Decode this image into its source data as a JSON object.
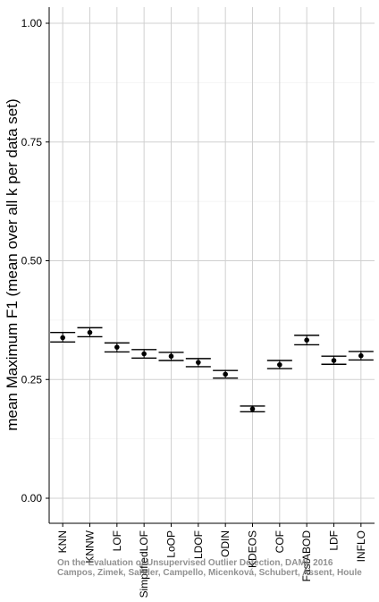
{
  "chart_data": {
    "type": "errorbar",
    "title": "",
    "xlabel": "",
    "ylabel": "mean Maximum F1 (mean over all k per data set)",
    "ylim": [
      0,
      1.05
    ],
    "yticks": [
      "0.00",
      "0.25",
      "0.50",
      "0.75",
      "1.00"
    ],
    "grid": true,
    "categories": [
      "KNN",
      "KNNW",
      "LOF",
      "SimplifiedLOF",
      "LoOP",
      "LDOF",
      "ODIN",
      "KDEOS",
      "COF",
      "FastABOD",
      "LDF",
      "INFLO"
    ],
    "series": [
      {
        "mean": [
          0.338,
          0.349,
          0.318,
          0.304,
          0.299,
          0.286,
          0.261,
          0.188,
          0.281,
          0.333,
          0.29,
          0.3
        ],
        "lower": [
          0.329,
          0.34,
          0.308,
          0.295,
          0.29,
          0.277,
          0.253,
          0.182,
          0.273,
          0.323,
          0.282,
          0.291
        ],
        "upper": [
          0.349,
          0.359,
          0.327,
          0.313,
          0.307,
          0.294,
          0.269,
          0.194,
          0.29,
          0.343,
          0.299,
          0.309
        ]
      }
    ]
  },
  "watermark": {
    "line1": "On the Evaluation of Unsupervised Outlier Detection, DAMI, 2016",
    "line2": "Campos, Zimek, Sander, Campello, Micenková, Schubert, Assent, Houle"
  }
}
